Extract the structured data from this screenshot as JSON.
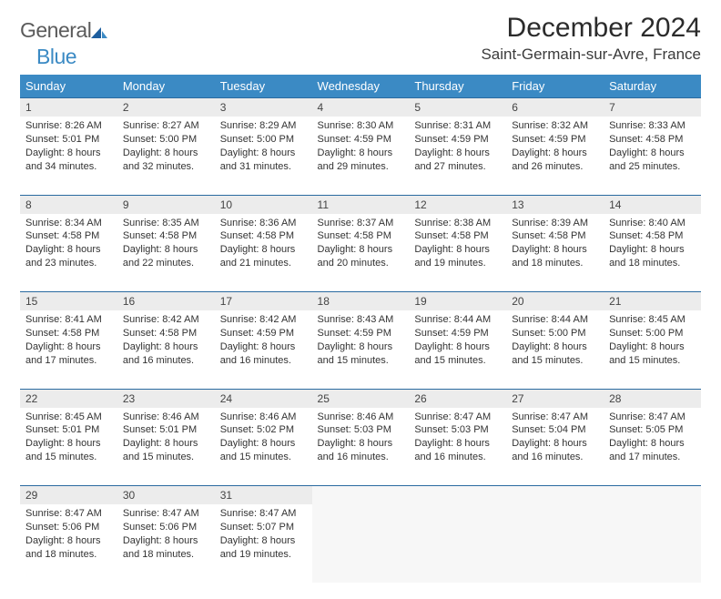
{
  "brand": {
    "general": "General",
    "blue": "Blue"
  },
  "title": "December 2024",
  "location": "Saint-Germain-sur-Avre, France",
  "colors": {
    "header_bg": "#3b8ac4",
    "daynum_bg": "#ececec",
    "row_border": "#2a6aa0",
    "text": "#333333"
  },
  "weekdays": [
    "Sunday",
    "Monday",
    "Tuesday",
    "Wednesday",
    "Thursday",
    "Friday",
    "Saturday"
  ],
  "weeks": [
    {
      "days": [
        {
          "num": "1",
          "sunrise": "Sunrise: 8:26 AM",
          "sunset": "Sunset: 5:01 PM",
          "day1": "Daylight: 8 hours",
          "day2": "and 34 minutes."
        },
        {
          "num": "2",
          "sunrise": "Sunrise: 8:27 AM",
          "sunset": "Sunset: 5:00 PM",
          "day1": "Daylight: 8 hours",
          "day2": "and 32 minutes."
        },
        {
          "num": "3",
          "sunrise": "Sunrise: 8:29 AM",
          "sunset": "Sunset: 5:00 PM",
          "day1": "Daylight: 8 hours",
          "day2": "and 31 minutes."
        },
        {
          "num": "4",
          "sunrise": "Sunrise: 8:30 AM",
          "sunset": "Sunset: 4:59 PM",
          "day1": "Daylight: 8 hours",
          "day2": "and 29 minutes."
        },
        {
          "num": "5",
          "sunrise": "Sunrise: 8:31 AM",
          "sunset": "Sunset: 4:59 PM",
          "day1": "Daylight: 8 hours",
          "day2": "and 27 minutes."
        },
        {
          "num": "6",
          "sunrise": "Sunrise: 8:32 AM",
          "sunset": "Sunset: 4:59 PM",
          "day1": "Daylight: 8 hours",
          "day2": "and 26 minutes."
        },
        {
          "num": "7",
          "sunrise": "Sunrise: 8:33 AM",
          "sunset": "Sunset: 4:58 PM",
          "day1": "Daylight: 8 hours",
          "day2": "and 25 minutes."
        }
      ]
    },
    {
      "days": [
        {
          "num": "8",
          "sunrise": "Sunrise: 8:34 AM",
          "sunset": "Sunset: 4:58 PM",
          "day1": "Daylight: 8 hours",
          "day2": "and 23 minutes."
        },
        {
          "num": "9",
          "sunrise": "Sunrise: 8:35 AM",
          "sunset": "Sunset: 4:58 PM",
          "day1": "Daylight: 8 hours",
          "day2": "and 22 minutes."
        },
        {
          "num": "10",
          "sunrise": "Sunrise: 8:36 AM",
          "sunset": "Sunset: 4:58 PM",
          "day1": "Daylight: 8 hours",
          "day2": "and 21 minutes."
        },
        {
          "num": "11",
          "sunrise": "Sunrise: 8:37 AM",
          "sunset": "Sunset: 4:58 PM",
          "day1": "Daylight: 8 hours",
          "day2": "and 20 minutes."
        },
        {
          "num": "12",
          "sunrise": "Sunrise: 8:38 AM",
          "sunset": "Sunset: 4:58 PM",
          "day1": "Daylight: 8 hours",
          "day2": "and 19 minutes."
        },
        {
          "num": "13",
          "sunrise": "Sunrise: 8:39 AM",
          "sunset": "Sunset: 4:58 PM",
          "day1": "Daylight: 8 hours",
          "day2": "and 18 minutes."
        },
        {
          "num": "14",
          "sunrise": "Sunrise: 8:40 AM",
          "sunset": "Sunset: 4:58 PM",
          "day1": "Daylight: 8 hours",
          "day2": "and 18 minutes."
        }
      ]
    },
    {
      "days": [
        {
          "num": "15",
          "sunrise": "Sunrise: 8:41 AM",
          "sunset": "Sunset: 4:58 PM",
          "day1": "Daylight: 8 hours",
          "day2": "and 17 minutes."
        },
        {
          "num": "16",
          "sunrise": "Sunrise: 8:42 AM",
          "sunset": "Sunset: 4:58 PM",
          "day1": "Daylight: 8 hours",
          "day2": "and 16 minutes."
        },
        {
          "num": "17",
          "sunrise": "Sunrise: 8:42 AM",
          "sunset": "Sunset: 4:59 PM",
          "day1": "Daylight: 8 hours",
          "day2": "and 16 minutes."
        },
        {
          "num": "18",
          "sunrise": "Sunrise: 8:43 AM",
          "sunset": "Sunset: 4:59 PM",
          "day1": "Daylight: 8 hours",
          "day2": "and 15 minutes."
        },
        {
          "num": "19",
          "sunrise": "Sunrise: 8:44 AM",
          "sunset": "Sunset: 4:59 PM",
          "day1": "Daylight: 8 hours",
          "day2": "and 15 minutes."
        },
        {
          "num": "20",
          "sunrise": "Sunrise: 8:44 AM",
          "sunset": "Sunset: 5:00 PM",
          "day1": "Daylight: 8 hours",
          "day2": "and 15 minutes."
        },
        {
          "num": "21",
          "sunrise": "Sunrise: 8:45 AM",
          "sunset": "Sunset: 5:00 PM",
          "day1": "Daylight: 8 hours",
          "day2": "and 15 minutes."
        }
      ]
    },
    {
      "days": [
        {
          "num": "22",
          "sunrise": "Sunrise: 8:45 AM",
          "sunset": "Sunset: 5:01 PM",
          "day1": "Daylight: 8 hours",
          "day2": "and 15 minutes."
        },
        {
          "num": "23",
          "sunrise": "Sunrise: 8:46 AM",
          "sunset": "Sunset: 5:01 PM",
          "day1": "Daylight: 8 hours",
          "day2": "and 15 minutes."
        },
        {
          "num": "24",
          "sunrise": "Sunrise: 8:46 AM",
          "sunset": "Sunset: 5:02 PM",
          "day1": "Daylight: 8 hours",
          "day2": "and 15 minutes."
        },
        {
          "num": "25",
          "sunrise": "Sunrise: 8:46 AM",
          "sunset": "Sunset: 5:03 PM",
          "day1": "Daylight: 8 hours",
          "day2": "and 16 minutes."
        },
        {
          "num": "26",
          "sunrise": "Sunrise: 8:47 AM",
          "sunset": "Sunset: 5:03 PM",
          "day1": "Daylight: 8 hours",
          "day2": "and 16 minutes."
        },
        {
          "num": "27",
          "sunrise": "Sunrise: 8:47 AM",
          "sunset": "Sunset: 5:04 PM",
          "day1": "Daylight: 8 hours",
          "day2": "and 16 minutes."
        },
        {
          "num": "28",
          "sunrise": "Sunrise: 8:47 AM",
          "sunset": "Sunset: 5:05 PM",
          "day1": "Daylight: 8 hours",
          "day2": "and 17 minutes."
        }
      ]
    },
    {
      "days": [
        {
          "num": "29",
          "sunrise": "Sunrise: 8:47 AM",
          "sunset": "Sunset: 5:06 PM",
          "day1": "Daylight: 8 hours",
          "day2": "and 18 minutes."
        },
        {
          "num": "30",
          "sunrise": "Sunrise: 8:47 AM",
          "sunset": "Sunset: 5:06 PM",
          "day1": "Daylight: 8 hours",
          "day2": "and 18 minutes."
        },
        {
          "num": "31",
          "sunrise": "Sunrise: 8:47 AM",
          "sunset": "Sunset: 5:07 PM",
          "day1": "Daylight: 8 hours",
          "day2": "and 19 minutes."
        },
        {
          "empty": true
        },
        {
          "empty": true
        },
        {
          "empty": true
        },
        {
          "empty": true
        }
      ]
    }
  ]
}
